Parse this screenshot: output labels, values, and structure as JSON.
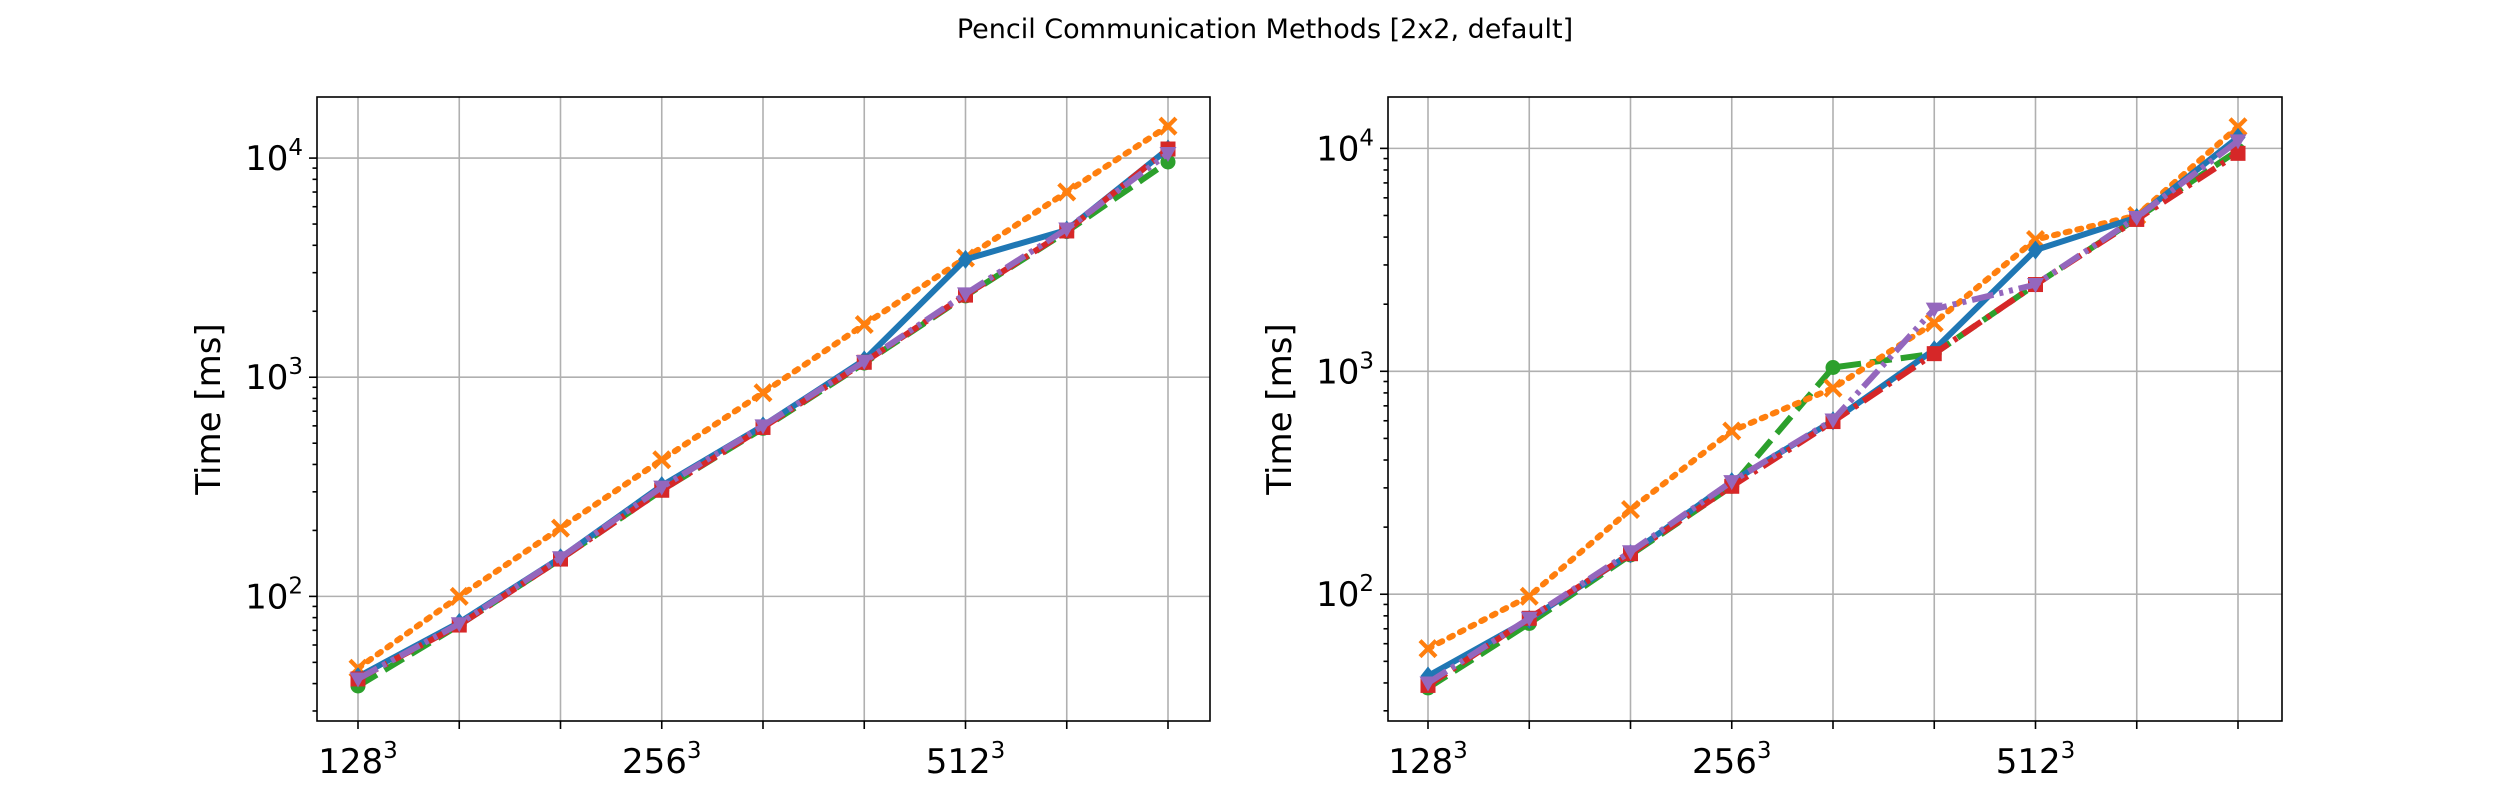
{
  "figure": {
    "suptitle": "Pencil Communication Methods [2x2, default]"
  },
  "chart_data": [
    {
      "type": "line",
      "ylabel": "Time [ms]",
      "yscale": "log",
      "ylim": [
        27,
        19000
      ],
      "y_ticks": [
        {
          "base": "10",
          "exp": "2",
          "value": 100
        },
        {
          "base": "10",
          "exp": "3",
          "value": 1000
        },
        {
          "base": "10",
          "exp": "4",
          "value": 10000
        }
      ],
      "x_ticks": [
        {
          "base": "128",
          "exp": "3",
          "index": 0
        },
        {
          "base": "256",
          "exp": "3",
          "index": 3
        },
        {
          "base": "512",
          "exp": "3",
          "index": 6
        }
      ],
      "n_points": 9,
      "grid": true,
      "series": [
        {
          "color": "#2ca02c",
          "style": "dashed",
          "marker": "circle",
          "values": [
            39,
            74,
            148,
            305,
            585,
            1160,
            2350,
            4620,
            9600
          ]
        },
        {
          "color": "#ff7f0e",
          "style": "dotted",
          "marker": "x",
          "values": [
            47,
            100,
            205,
            420,
            850,
            1740,
            3500,
            7000,
            14000
          ]
        },
        {
          "color": "#1f77b4",
          "style": "solid",
          "marker": "diamond",
          "values": [
            43,
            76,
            150,
            320,
            600,
            1200,
            3450,
            4700,
            11000
          ]
        },
        {
          "color": "#d62728",
          "style": "dashdot",
          "marker": "square",
          "values": [
            42,
            74,
            148,
            305,
            590,
            1170,
            2370,
            4650,
            11000
          ]
        },
        {
          "color": "#9467bd",
          "style": "dashdotdot",
          "marker": "triangle",
          "values": [
            42,
            75,
            150,
            315,
            600,
            1180,
            2400,
            4750,
            10500
          ]
        }
      ]
    },
    {
      "type": "line",
      "ylabel": "Time [ms]",
      "yscale": "log",
      "ylim": [
        27,
        17000
      ],
      "y_ticks": [
        {
          "base": "10",
          "exp": "2",
          "value": 100
        },
        {
          "base": "10",
          "exp": "3",
          "value": 1000
        },
        {
          "base": "10",
          "exp": "4",
          "value": 10000
        }
      ],
      "x_ticks": [
        {
          "base": "128",
          "exp": "3",
          "index": 0
        },
        {
          "base": "256",
          "exp": "3",
          "index": 3
        },
        {
          "base": "512",
          "exp": "3",
          "index": 6
        }
      ],
      "n_points": 9,
      "grid": true,
      "series": [
        {
          "color": "#2ca02c",
          "style": "dashed",
          "marker": "circle",
          "values": [
            38,
            74,
            150,
            305,
            1040,
            1200,
            2450,
            4850,
            9800
          ]
        },
        {
          "color": "#ff7f0e",
          "style": "dotted",
          "marker": "x",
          "values": [
            57,
            98,
            240,
            540,
            840,
            1650,
            3900,
            5000,
            12500
          ]
        },
        {
          "color": "#1f77b4",
          "style": "solid",
          "marker": "diamond",
          "values": [
            43,
            77,
            152,
            320,
            600,
            1250,
            3500,
            4900,
            11200
          ]
        },
        {
          "color": "#d62728",
          "style": "dashdot",
          "marker": "square",
          "values": [
            39,
            78,
            152,
            305,
            595,
            1200,
            2450,
            4800,
            9500
          ]
        },
        {
          "color": "#9467bd",
          "style": "dashdotdot",
          "marker": "triangle",
          "values": [
            40,
            78,
            155,
            320,
            605,
            1900,
            2450,
            4900,
            10800
          ]
        }
      ]
    }
  ]
}
